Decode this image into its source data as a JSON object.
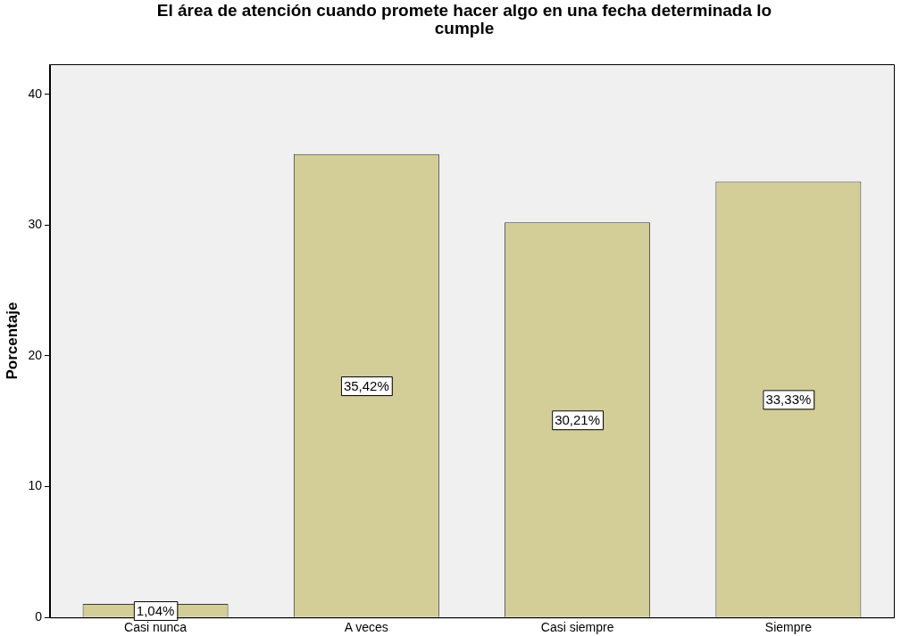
{
  "chart_data": {
    "type": "bar",
    "title": "El área de atención cuando promete hacer algo en una fecha determinada lo cumple",
    "ylabel": "Porcentaje",
    "categories": [
      "Casi nunca",
      "A veces",
      "Casi siempre",
      "Siempre"
    ],
    "values": [
      1.04,
      35.42,
      30.21,
      33.33
    ],
    "value_labels": [
      "1,04%",
      "35,42%",
      "30,21%",
      "33,33%"
    ],
    "color": "#d3ce97",
    "ylim": [
      0,
      42.3
    ],
    "yticks": [
      0,
      10,
      20,
      30,
      40
    ],
    "grid": false,
    "legend": false
  }
}
